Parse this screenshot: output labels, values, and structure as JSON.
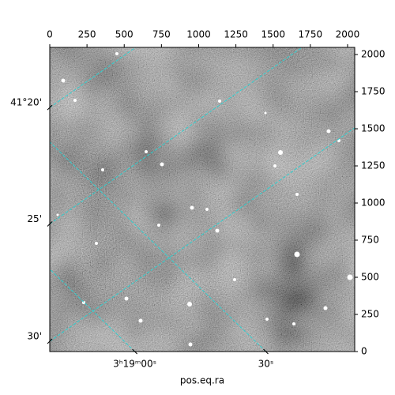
{
  "chart_data": {
    "type": "image",
    "xlabel": "pos.eq.ra",
    "xlim": [
      0,
      2048
    ],
    "ylim": [
      0,
      2048
    ],
    "xticks": [
      0,
      250,
      500,
      750,
      1000,
      1250,
      1500,
      1750,
      2000
    ],
    "yticks": [
      0,
      250,
      500,
      750,
      1000,
      1250,
      1500,
      1750,
      2000
    ],
    "dec_ticks": [
      {
        "value": 1643,
        "label": "41°20'"
      },
      {
        "value": 859,
        "label": "25'"
      },
      {
        "value": 69,
        "label": "30'"
      }
    ],
    "ra_ticks": [
      {
        "value": 571,
        "label": "3ʰ19ᵐ00ˢ"
      },
      {
        "value": 1451,
        "label": "30ˢ"
      }
    ],
    "grid": true,
    "grid_color": "#2fd0d0"
  }
}
